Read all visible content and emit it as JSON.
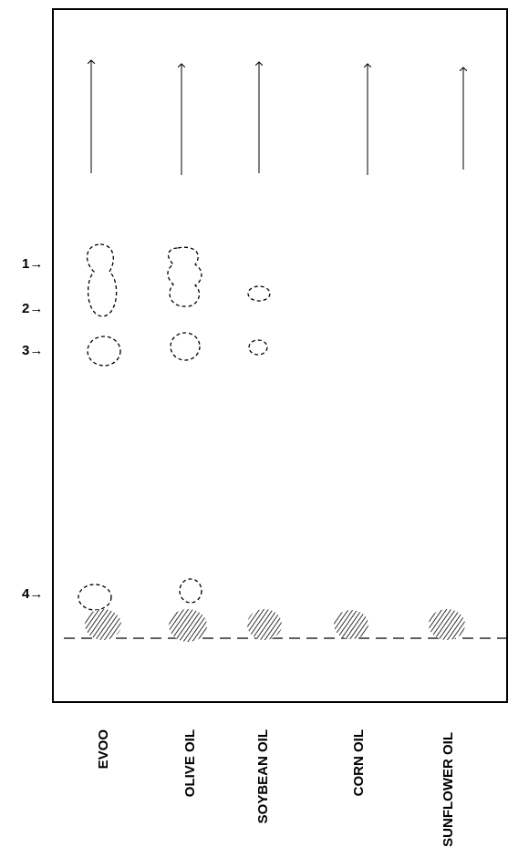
{
  "markers": [
    "1→",
    "2→",
    "3→",
    "4→"
  ],
  "lanes": [
    "EVOO",
    "OLIVE OIL",
    "SOYBEAN OIL",
    "CORN OIL",
    "SUNFLOWER OIL"
  ]
}
